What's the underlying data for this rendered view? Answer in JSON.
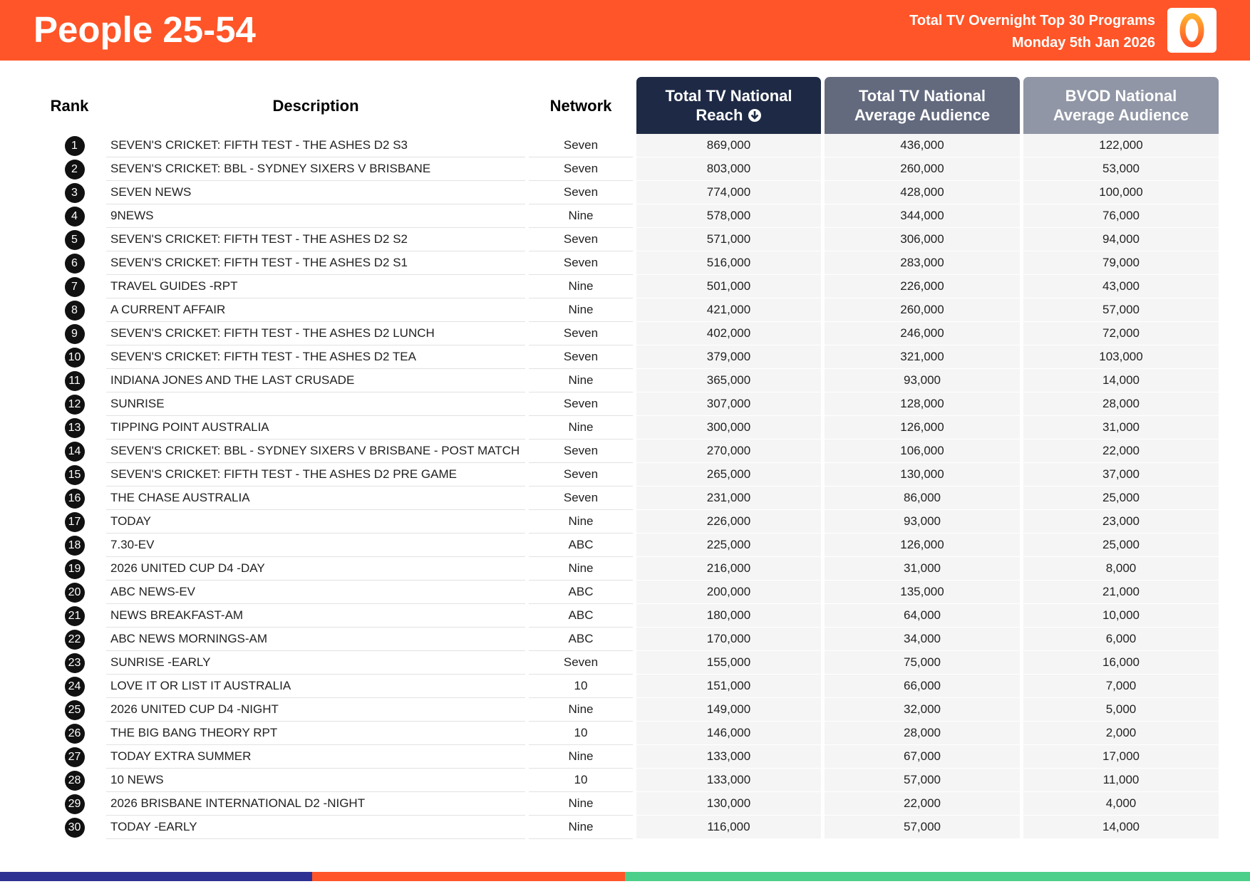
{
  "header": {
    "title": "People 25-54",
    "subtitle": [
      "Total TV Overnight Top 30 Programs",
      "Monday 5th Jan 2026"
    ]
  },
  "table": {
    "columns": [
      "Rank",
      "Description",
      "Network",
      "Total TV National Reach",
      "Total TV National Average Audience",
      "BVOD National Average Audience"
    ],
    "rows": [
      [
        "1",
        "SEVEN'S CRICKET: FIFTH TEST - THE ASHES D2 S3",
        "Seven",
        "869,000",
        "436,000",
        "122,000"
      ],
      [
        "2",
        "SEVEN'S CRICKET: BBL - SYDNEY SIXERS V BRISBANE",
        "Seven",
        "803,000",
        "260,000",
        "53,000"
      ],
      [
        "3",
        "SEVEN NEWS",
        "Seven",
        "774,000",
        "428,000",
        "100,000"
      ],
      [
        "4",
        "9NEWS",
        "Nine",
        "578,000",
        "344,000",
        "76,000"
      ],
      [
        "5",
        "SEVEN'S CRICKET: FIFTH TEST - THE ASHES D2 S2",
        "Seven",
        "571,000",
        "306,000",
        "94,000"
      ],
      [
        "6",
        "SEVEN'S CRICKET: FIFTH TEST - THE ASHES D2 S1",
        "Seven",
        "516,000",
        "283,000",
        "79,000"
      ],
      [
        "7",
        "TRAVEL GUIDES -RPT",
        "Nine",
        "501,000",
        "226,000",
        "43,000"
      ],
      [
        "8",
        "A CURRENT AFFAIR",
        "Nine",
        "421,000",
        "260,000",
        "57,000"
      ],
      [
        "9",
        "SEVEN'S CRICKET: FIFTH TEST - THE ASHES D2 LUNCH",
        "Seven",
        "402,000",
        "246,000",
        "72,000"
      ],
      [
        "10",
        "SEVEN'S CRICKET: FIFTH TEST - THE ASHES D2 TEA",
        "Seven",
        "379,000",
        "321,000",
        "103,000"
      ],
      [
        "11",
        "INDIANA JONES AND THE LAST CRUSADE",
        "Nine",
        "365,000",
        "93,000",
        "14,000"
      ],
      [
        "12",
        "SUNRISE",
        "Seven",
        "307,000",
        "128,000",
        "28,000"
      ],
      [
        "13",
        "TIPPING POINT AUSTRALIA",
        "Nine",
        "300,000",
        "126,000",
        "31,000"
      ],
      [
        "14",
        "SEVEN'S CRICKET: BBL - SYDNEY SIXERS V BRISBANE - POST MATCH",
        "Seven",
        "270,000",
        "106,000",
        "22,000"
      ],
      [
        "15",
        "SEVEN'S CRICKET: FIFTH TEST - THE ASHES D2 PRE GAME",
        "Seven",
        "265,000",
        "130,000",
        "37,000"
      ],
      [
        "16",
        "THE CHASE AUSTRALIA",
        "Seven",
        "231,000",
        "86,000",
        "25,000"
      ],
      [
        "17",
        "TODAY",
        "Nine",
        "226,000",
        "93,000",
        "23,000"
      ],
      [
        "18",
        "7.30-EV",
        "ABC",
        "225,000",
        "126,000",
        "25,000"
      ],
      [
        "19",
        "2026 UNITED CUP D4 -DAY",
        "Nine",
        "216,000",
        "31,000",
        "8,000"
      ],
      [
        "20",
        "ABC NEWS-EV",
        "ABC",
        "200,000",
        "135,000",
        "21,000"
      ],
      [
        "21",
        "NEWS BREAKFAST-AM",
        "ABC",
        "180,000",
        "64,000",
        "10,000"
      ],
      [
        "22",
        "ABC NEWS MORNINGS-AM",
        "ABC",
        "170,000",
        "34,000",
        "6,000"
      ],
      [
        "23",
        "SUNRISE -EARLY",
        "Seven",
        "155,000",
        "75,000",
        "16,000"
      ],
      [
        "24",
        "LOVE IT OR LIST IT AUSTRALIA",
        "10",
        "151,000",
        "66,000",
        "7,000"
      ],
      [
        "25",
        "2026 UNITED CUP D4 -NIGHT",
        "Nine",
        "149,000",
        "32,000",
        "5,000"
      ],
      [
        "26",
        "THE BIG BANG THEORY RPT",
        "10",
        "146,000",
        "28,000",
        "2,000"
      ],
      [
        "27",
        "TODAY EXTRA SUMMER",
        "Nine",
        "133,000",
        "67,000",
        "17,000"
      ],
      [
        "28",
        "10 NEWS",
        "10",
        "133,000",
        "57,000",
        "11,000"
      ],
      [
        "29",
        "2026 BRISBANE INTERNATIONAL D2 -NIGHT",
        "Nine",
        "130,000",
        "22,000",
        "4,000"
      ],
      [
        "30",
        "TODAY -EARLY",
        "Nine",
        "116,000",
        "57,000",
        "14,000"
      ]
    ]
  }
}
